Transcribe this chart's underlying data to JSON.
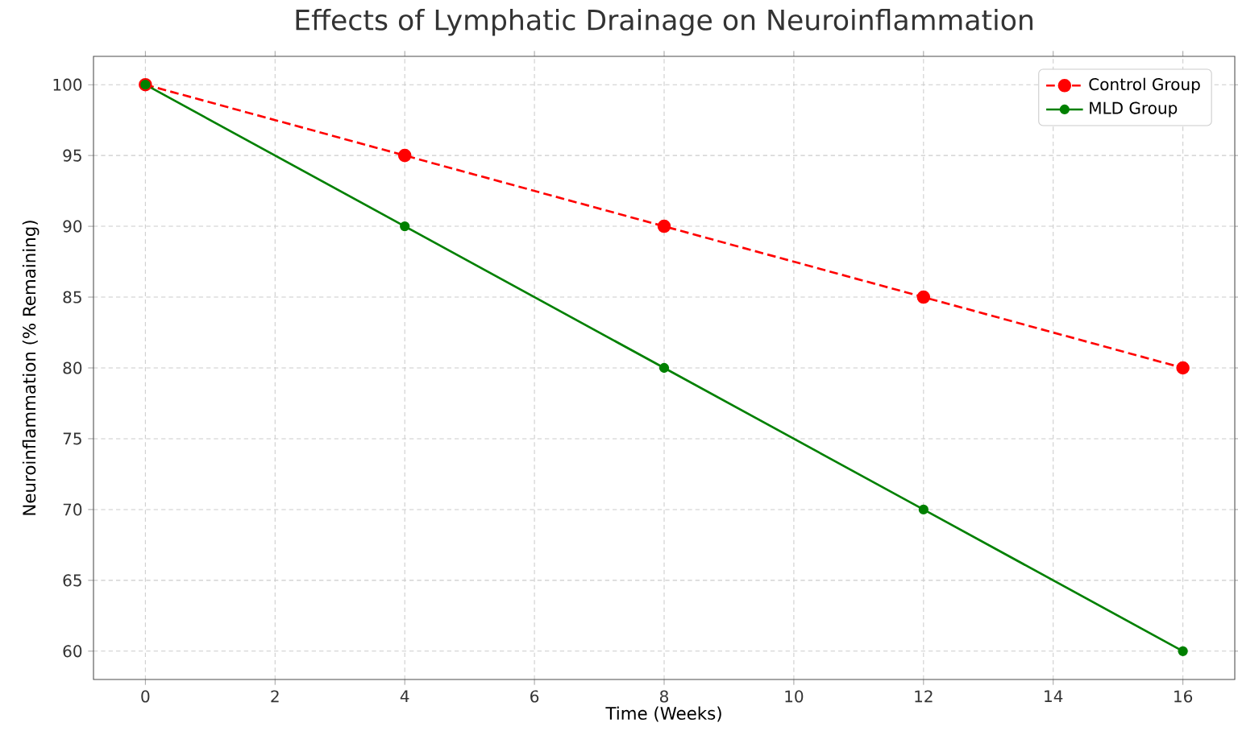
{
  "chart_data": {
    "type": "line",
    "title": "Effects of Lymphatic Drainage on Neuroinflammation",
    "xlabel": "Time (Weeks)",
    "ylabel": "Neuroinflammation (% Remaining)",
    "x": [
      0,
      4,
      8,
      12,
      16
    ],
    "series": [
      {
        "name": "Control Group",
        "color": "#ff0000",
        "line_style": "dashed",
        "values": [
          100,
          95,
          90,
          85,
          80
        ]
      },
      {
        "name": "MLD Group",
        "color": "#008000",
        "line_style": "solid",
        "values": [
          100,
          90,
          80,
          70,
          60
        ]
      }
    ],
    "xlim": [
      -0.8,
      16.8
    ],
    "ylim": [
      58,
      102
    ],
    "xticks": [
      0,
      2,
      4,
      6,
      8,
      10,
      12,
      14,
      16
    ],
    "yticks": [
      60,
      65,
      70,
      75,
      80,
      85,
      90,
      95,
      100
    ],
    "grid": true,
    "legend": "top right",
    "marker": "circle"
  }
}
